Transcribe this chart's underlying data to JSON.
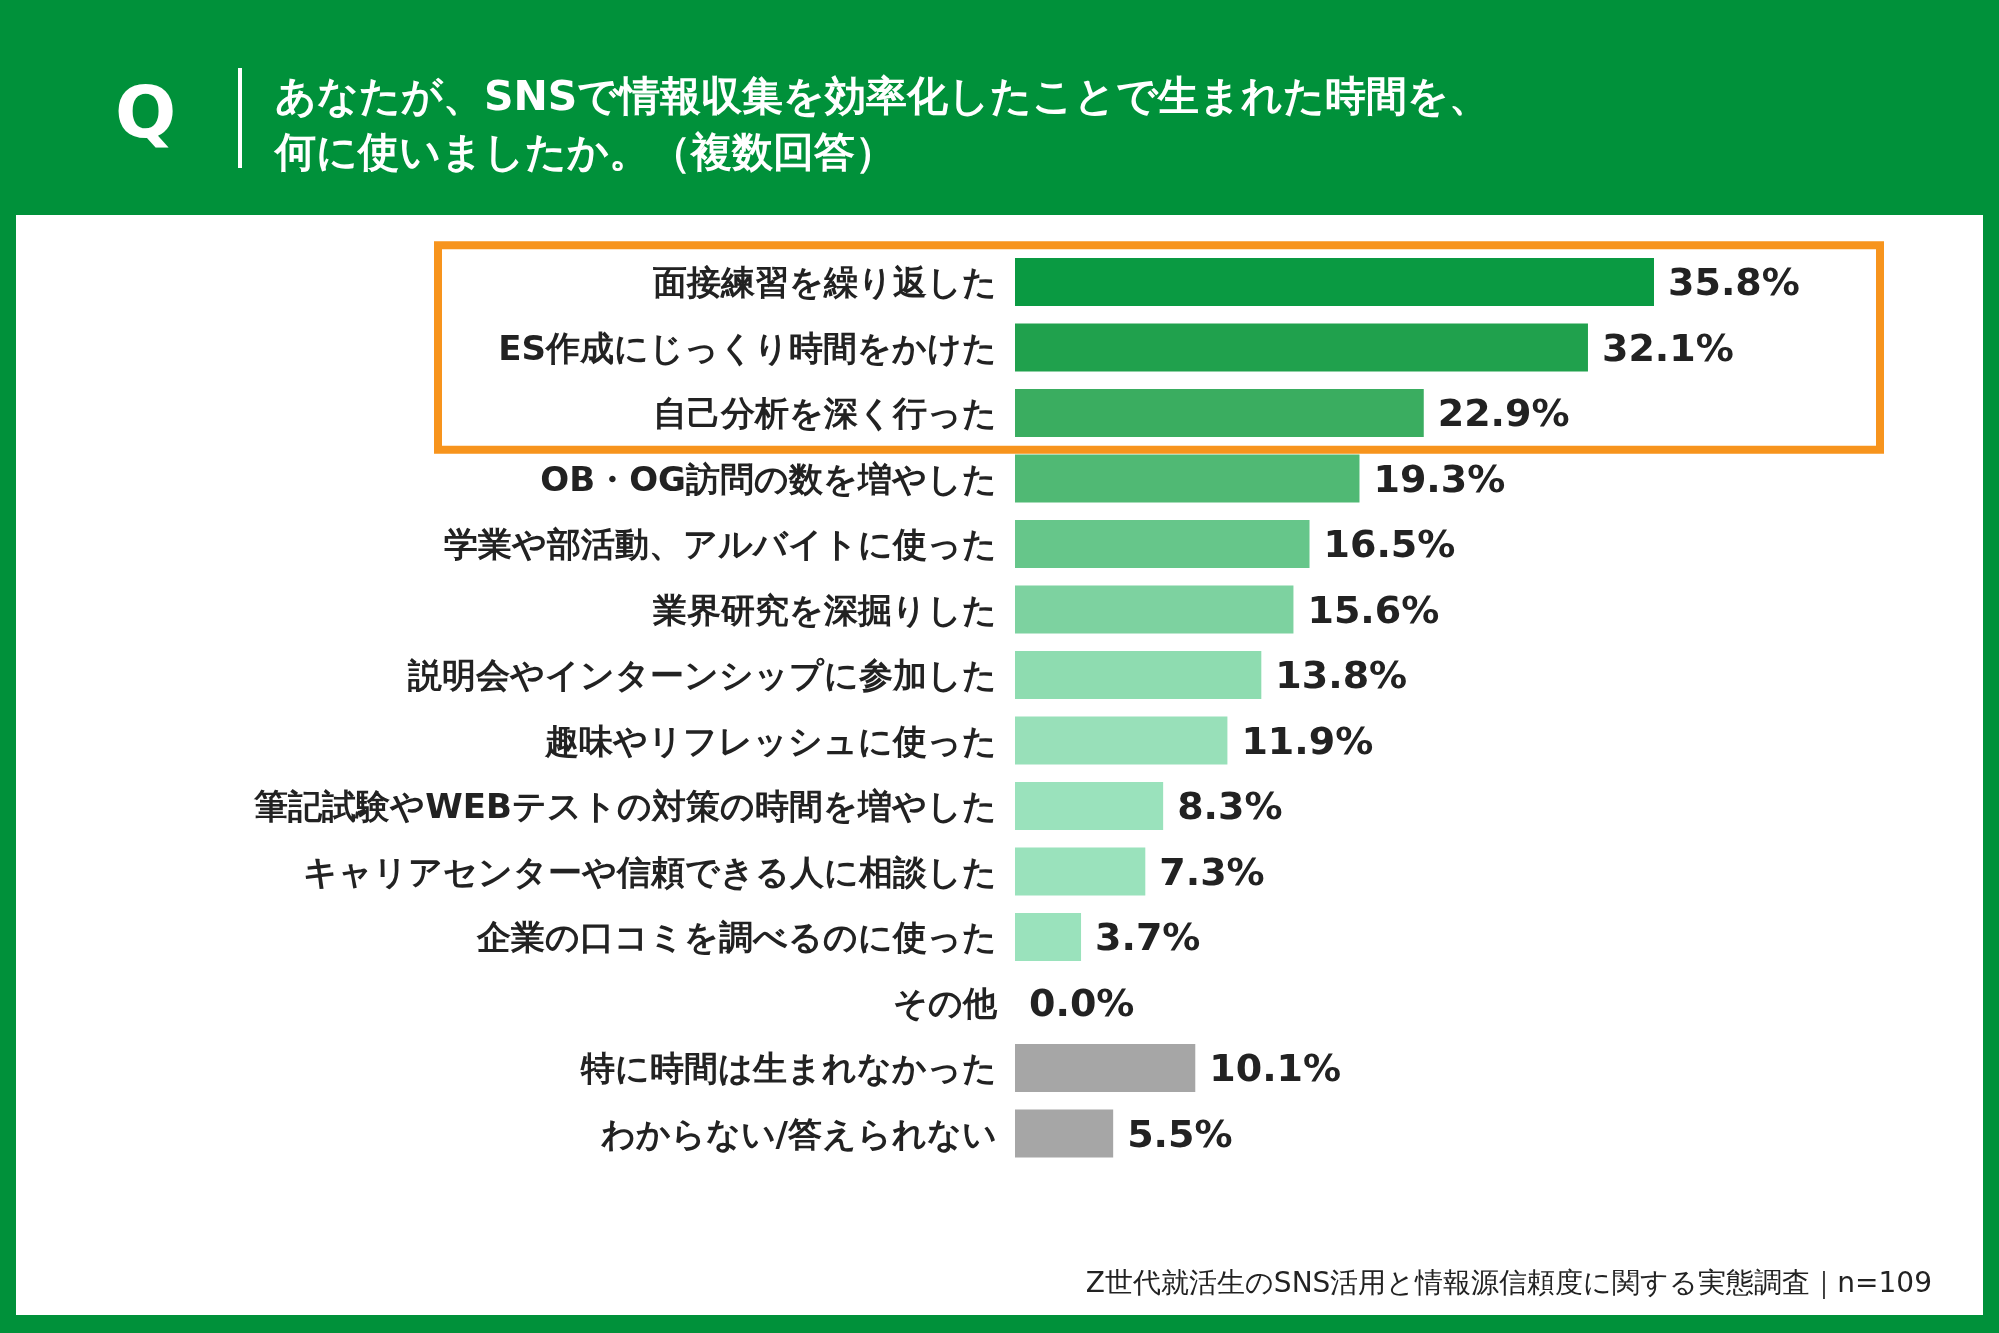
{
  "chart_data": {
    "type": "bar",
    "orientation": "horizontal",
    "title": "あなたが、SNSで情報収集を効率化したことで生まれた時間を、何に使いましたか。（複数回答）",
    "annotations": [
      "Q",
      "Z世代就活生のSNS活用と情報源信頼度に関する実態調査｜n=109"
    ],
    "categories": [
      "面接練習を繰り返した",
      "ES作成にじっくり時間をかけた",
      "自己分析を深く行った",
      "OB・OG訪問の数を増やした",
      "学業や部活動、アルバイトに使った",
      "業界研究を深掘りした",
      "説明会やインターンシップに参加した",
      "趣味やリフレッシュに使った",
      "筆記試験やWEBテストの対策の時間を増やした",
      "キャリアセンターや信頼できる人に相談した",
      "企業の口コミを調べるのに使った",
      "その他",
      "特に時間は生まれなかった",
      "わからない/答えられない"
    ],
    "values": [
      35.8,
      32.1,
      22.9,
      19.3,
      16.5,
      15.6,
      13.8,
      11.9,
      8.3,
      7.3,
      3.7,
      0.0,
      10.1,
      5.5
    ],
    "value_labels": [
      "35.8%",
      "32.1%",
      "22.9%",
      "19.3%",
      "16.5%",
      "15.6%",
      "13.8%",
      "11.9%",
      "8.3%",
      "7.3%",
      "3.7%",
      "0.0%",
      "10.1%",
      "5.5%"
    ],
    "colors": [
      "#0a9a42",
      "#20a14d",
      "#3aad60",
      "#50b974",
      "#66c68a",
      "#7dd2a0",
      "#8edcb0",
      "#98e0b9",
      "#9ae2bc",
      "#9ae2bc",
      "#9ae2bc",
      "#9ae2bc",
      "#a6a6a6",
      "#a6a6a6"
    ]
  }
}
